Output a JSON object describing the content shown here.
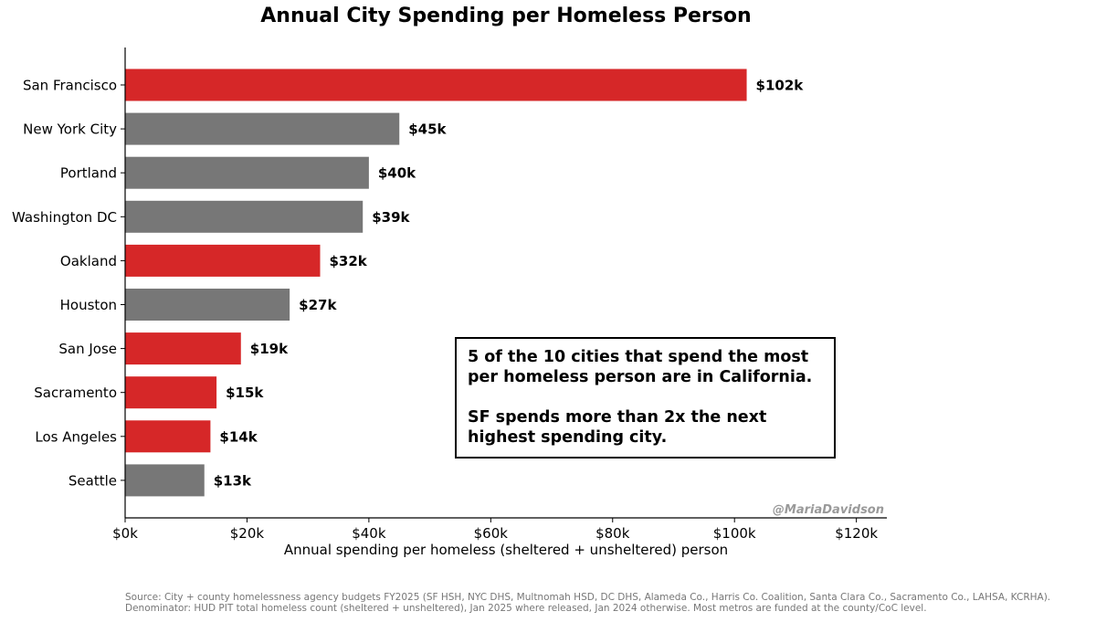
{
  "chart_data": {
    "type": "bar",
    "orientation": "horizontal",
    "title": "Annual City Spending per Homeless Person",
    "xlabel": "Annual spending per homeless (sheltered + unsheltered) person",
    "ylabel": "",
    "xlim": [
      0,
      125
    ],
    "value_unit": "thousand USD",
    "x_ticks": [
      {
        "value": 0,
        "label": "$0k"
      },
      {
        "value": 20,
        "label": "$20k"
      },
      {
        "value": 40,
        "label": "$40k"
      },
      {
        "value": 60,
        "label": "$60k"
      },
      {
        "value": 80,
        "label": "$80k"
      },
      {
        "value": 100,
        "label": "$100k"
      },
      {
        "value": 120,
        "label": "$120k"
      }
    ],
    "grid": false,
    "colors": {
      "california": "#d62728",
      "other": "#777777"
    },
    "bars": [
      {
        "category": "San Francisco",
        "value": 102,
        "label": "$102k",
        "group": "california"
      },
      {
        "category": "New York City",
        "value": 45,
        "label": "$45k",
        "group": "other"
      },
      {
        "category": "Portland",
        "value": 40,
        "label": "$40k",
        "group": "other"
      },
      {
        "category": "Washington DC",
        "value": 39,
        "label": "$39k",
        "group": "other"
      },
      {
        "category": "Oakland",
        "value": 32,
        "label": "$32k",
        "group": "california"
      },
      {
        "category": "Houston",
        "value": 27,
        "label": "$27k",
        "group": "other"
      },
      {
        "category": "San Jose",
        "value": 19,
        "label": "$19k",
        "group": "california"
      },
      {
        "category": "Sacramento",
        "value": 15,
        "label": "$15k",
        "group": "california"
      },
      {
        "category": "Los Angeles",
        "value": 14,
        "label": "$14k",
        "group": "california"
      },
      {
        "category": "Seattle",
        "value": 13,
        "label": "$13k",
        "group": "other"
      }
    ],
    "annotation": [
      "5 of the 10 cities that spend the most per homeless person are in California.",
      "SF spends more than 2x the next highest spending city."
    ],
    "watermark": "@MariaDavidson",
    "source": [
      "Source: City + county homelessness agency budgets FY2025 (SF HSH, NYC DHS, Multnomah HSD, DC DHS, Alameda Co., Harris Co. Coalition, Santa Clara Co., Sacramento Co., LAHSA, KCRHA).",
      "Denominator: HUD PIT total homeless count (sheltered + unsheltered), Jan 2025 where released, Jan 2024 otherwise. Most metros are funded at the county/CoC level."
    ]
  }
}
